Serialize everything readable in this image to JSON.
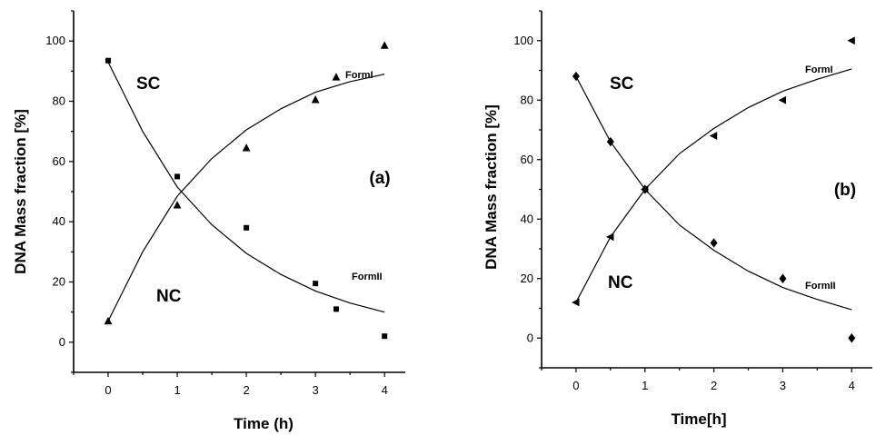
{
  "chart_data": [
    {
      "type": "scatter",
      "panel_label": "(a)",
      "xlabel": "Time (h)",
      "ylabel": "DNA Mass fraction [%]",
      "xlim": [
        -0.5,
        4.3
      ],
      "ylim": [
        -10,
        110
      ],
      "xticks": [
        0,
        1,
        2,
        3,
        4
      ],
      "yticks": [
        0,
        20,
        40,
        60,
        80,
        100
      ],
      "annotations": [
        "SC",
        "NC",
        "FormI",
        "FormII"
      ],
      "series": [
        {
          "marker": "square",
          "x": [
            0,
            1,
            2,
            3,
            3.3,
            4
          ],
          "y": [
            93.5,
            55,
            38,
            19.5,
            11,
            2
          ],
          "fit": [
            {
              "x": 0,
              "y": 93
            },
            {
              "x": 0.5,
              "y": 70
            },
            {
              "x": 1,
              "y": 51.5
            },
            {
              "x": 1.5,
              "y": 39
            },
            {
              "x": 2,
              "y": 29.5
            },
            {
              "x": 2.5,
              "y": 22.5
            },
            {
              "x": 3,
              "y": 17
            },
            {
              "x": 3.5,
              "y": 13
            },
            {
              "x": 4,
              "y": 10
            }
          ]
        },
        {
          "marker": "triangle-up",
          "x": [
            0,
            1,
            2,
            3,
            3.3,
            4
          ],
          "y": [
            7,
            45.5,
            64.5,
            80.5,
            88,
            98.5
          ],
          "fit": [
            {
              "x": 0,
              "y": 7
            },
            {
              "x": 0.5,
              "y": 30
            },
            {
              "x": 1,
              "y": 48.5
            },
            {
              "x": 1.5,
              "y": 61
            },
            {
              "x": 2,
              "y": 70.5
            },
            {
              "x": 2.5,
              "y": 77.5
            },
            {
              "x": 3,
              "y": 83
            },
            {
              "x": 3.5,
              "y": 86.5
            },
            {
              "x": 4,
              "y": 89
            }
          ]
        }
      ]
    },
    {
      "type": "scatter",
      "panel_label": "(b)",
      "xlabel": "Time[h]",
      "ylabel": "DNA Mass fraction [%]",
      "xlim": [
        -0.5,
        4.3
      ],
      "ylim": [
        -10,
        110
      ],
      "xticks": [
        0,
        1,
        2,
        3,
        4
      ],
      "yticks": [
        0,
        20,
        40,
        60,
        80,
        100
      ],
      "annotations": [
        "SC",
        "NC",
        "FormI",
        "FormII"
      ],
      "series": [
        {
          "marker": "diamond",
          "x": [
            0,
            0.5,
            1,
            2,
            3,
            4
          ],
          "y": [
            88,
            66,
            50,
            32,
            20,
            0
          ],
          "fit": [
            {
              "x": 0,
              "y": 88
            },
            {
              "x": 0.5,
              "y": 66
            },
            {
              "x": 1,
              "y": 50
            },
            {
              "x": 1.5,
              "y": 38
            },
            {
              "x": 2,
              "y": 29.5
            },
            {
              "x": 2.5,
              "y": 22.5
            },
            {
              "x": 3,
              "y": 17
            },
            {
              "x": 3.5,
              "y": 13
            },
            {
              "x": 4,
              "y": 9.5
            }
          ]
        },
        {
          "marker": "triangle-left",
          "x": [
            0,
            0.5,
            1,
            2,
            3,
            4
          ],
          "y": [
            12,
            34,
            50,
            68,
            80,
            100
          ],
          "fit": [
            {
              "x": 0,
              "y": 12
            },
            {
              "x": 0.5,
              "y": 34
            },
            {
              "x": 1,
              "y": 50
            },
            {
              "x": 1.5,
              "y": 62
            },
            {
              "x": 2,
              "y": 70.5
            },
            {
              "x": 2.5,
              "y": 77.5
            },
            {
              "x": 3,
              "y": 83
            },
            {
              "x": 3.5,
              "y": 87
            },
            {
              "x": 4,
              "y": 90.5
            }
          ]
        }
      ]
    }
  ]
}
